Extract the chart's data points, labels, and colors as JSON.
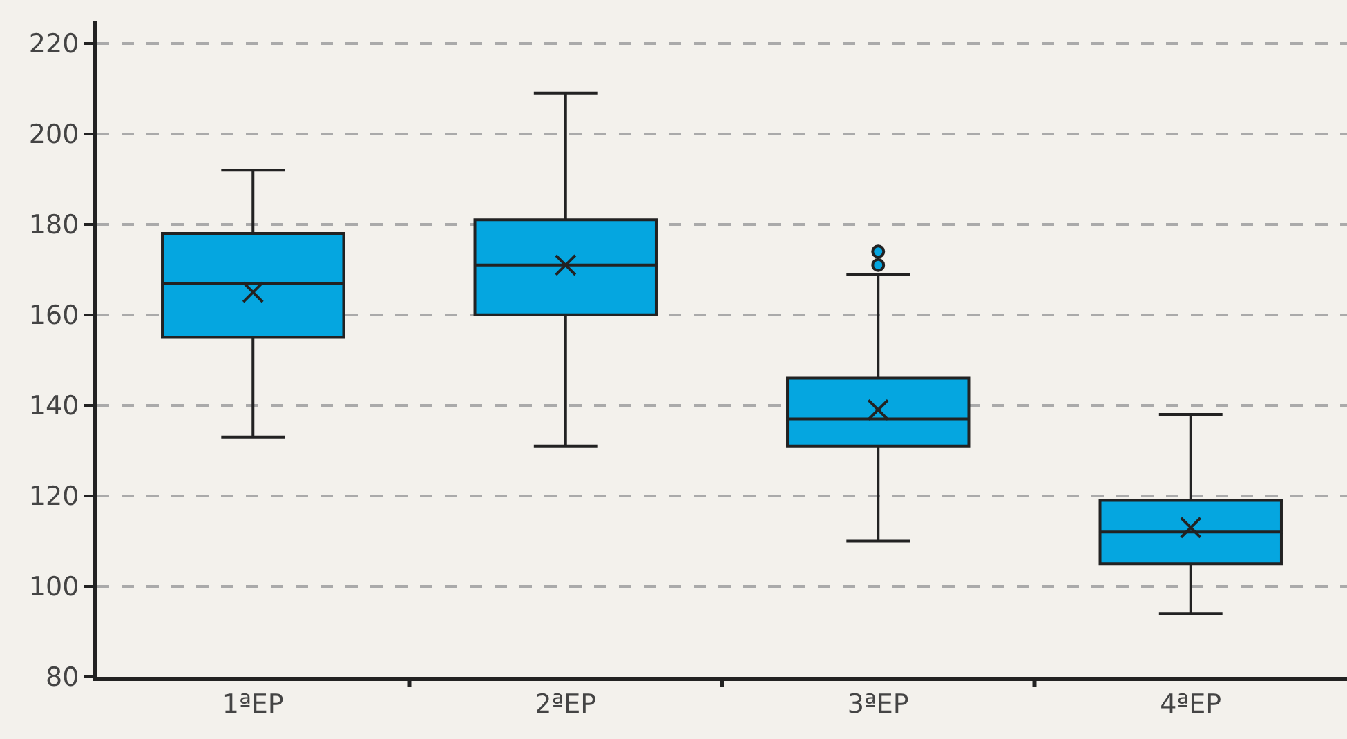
{
  "chart_data": {
    "type": "box",
    "categories": [
      "1ªEP",
      "2ªEP",
      "3ªEP",
      "4ªEP"
    ],
    "color": "#05a6e0",
    "boxes": [
      {
        "low": 133,
        "q1": 155,
        "median": 167,
        "q3": 178,
        "high": 192,
        "mean": 165
      },
      {
        "low": 131,
        "q1": 160,
        "median": 171,
        "q3": 181,
        "high": 209,
        "mean": 171
      },
      {
        "low": 110,
        "q1": 131,
        "median": 137,
        "q3": 146,
        "high": 169,
        "mean": 139,
        "outliers": [
          171,
          174
        ]
      },
      {
        "low": 94,
        "q1": 105,
        "median": 112,
        "q3": 119,
        "high": 138,
        "mean": 113
      }
    ],
    "ylim": [
      80,
      225
    ],
    "yticks": [
      80,
      100,
      120,
      140,
      160,
      180,
      200,
      220
    ],
    "grid": "y",
    "marker": "cross"
  }
}
